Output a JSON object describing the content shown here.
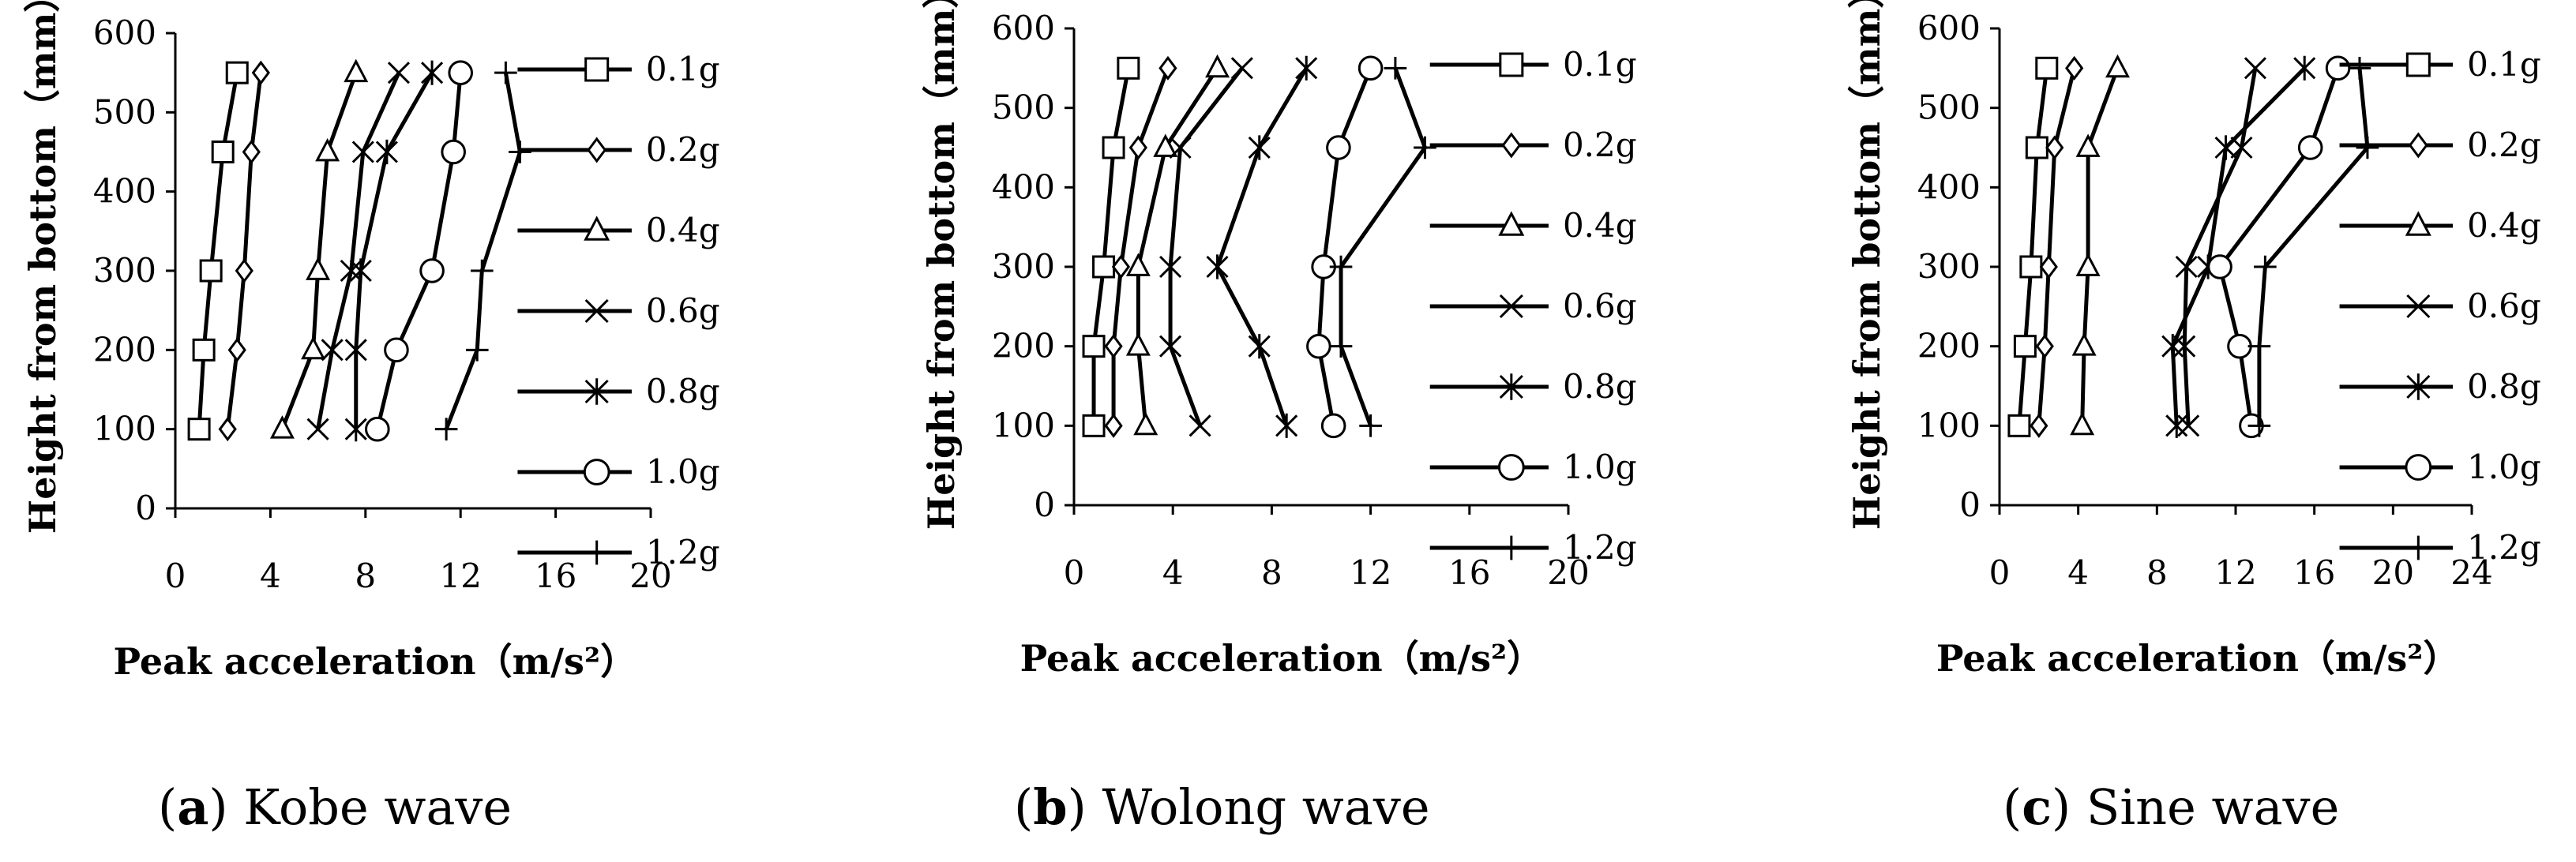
{
  "figure": {
    "panels": [
      {
        "caption_letter": "a",
        "caption_text": " Kobe wave"
      },
      {
        "caption_letter": "b",
        "caption_text": " Wolong wave"
      },
      {
        "caption_letter": "c",
        "caption_text": " Sine wave"
      }
    ]
  },
  "chart_data": [
    {
      "type": "line",
      "xlabel": "Peak acceleration（m/s²）",
      "ylabel": "Height from bottom（mm）",
      "xlim": [
        0,
        20
      ],
      "ylim": [
        0,
        600
      ],
      "xticks": [
        0,
        4,
        8,
        12,
        16,
        20
      ],
      "yticks": [
        0,
        100,
        200,
        300,
        400,
        500,
        600
      ],
      "legend_position": "right",
      "grid": false,
      "y": [
        100,
        200,
        300,
        450,
        550
      ],
      "series": [
        {
          "name": "0.1g",
          "marker": "square",
          "x": [
            1.0,
            1.2,
            1.5,
            2.0,
            2.6
          ]
        },
        {
          "name": "0.2g",
          "marker": "diamond",
          "x": [
            2.2,
            2.6,
            2.9,
            3.2,
            3.6
          ]
        },
        {
          "name": "0.4g",
          "marker": "triangle",
          "x": [
            4.5,
            5.8,
            6.0,
            6.4,
            7.6
          ]
        },
        {
          "name": "0.6g",
          "marker": "x",
          "x": [
            6.0,
            6.6,
            7.4,
            7.9,
            9.4
          ]
        },
        {
          "name": "0.8g",
          "marker": "star",
          "x": [
            7.6,
            7.6,
            7.8,
            8.9,
            10.8
          ]
        },
        {
          "name": "1.0g",
          "marker": "circle",
          "x": [
            8.5,
            9.3,
            10.8,
            11.7,
            12.0
          ]
        },
        {
          "name": "1.2g",
          "marker": "plus",
          "x": [
            11.4,
            12.7,
            12.9,
            14.5,
            13.9
          ]
        }
      ]
    },
    {
      "type": "line",
      "xlabel": "Peak acceleration（m/s²）",
      "ylabel": "Height from bottom（mm）",
      "xlim": [
        0,
        20
      ],
      "ylim": [
        0,
        600
      ],
      "xticks": [
        0,
        4,
        8,
        12,
        16,
        20
      ],
      "yticks": [
        0,
        100,
        200,
        300,
        400,
        500,
        600
      ],
      "legend_position": "right",
      "grid": false,
      "y": [
        100,
        200,
        300,
        450,
        550
      ],
      "series": [
        {
          "name": "0.1g",
          "marker": "square",
          "x": [
            0.8,
            0.8,
            1.2,
            1.6,
            2.2
          ]
        },
        {
          "name": "0.2g",
          "marker": "diamond",
          "x": [
            1.6,
            1.6,
            1.9,
            2.6,
            3.8
          ]
        },
        {
          "name": "0.4g",
          "marker": "triangle",
          "x": [
            2.9,
            2.6,
            2.6,
            3.7,
            5.8
          ]
        },
        {
          "name": "0.6g",
          "marker": "x",
          "x": [
            5.1,
            3.9,
            3.9,
            4.3,
            6.8
          ]
        },
        {
          "name": "0.8g",
          "marker": "star",
          "x": [
            8.6,
            7.5,
            5.8,
            7.5,
            9.4
          ]
        },
        {
          "name": "1.0g",
          "marker": "circle",
          "x": [
            10.5,
            9.9,
            10.1,
            10.7,
            12.0
          ]
        },
        {
          "name": "1.2g",
          "marker": "plus",
          "x": [
            12.0,
            10.8,
            10.8,
            14.2,
            13.0
          ]
        }
      ]
    },
    {
      "type": "line",
      "xlabel": "Peak acceleration（m/s²）",
      "ylabel": "Height from bottom（mm）",
      "xlim": [
        0,
        24
      ],
      "ylim": [
        0,
        600
      ],
      "xticks": [
        0,
        4,
        8,
        12,
        16,
        20,
        24
      ],
      "yticks": [
        0,
        100,
        200,
        300,
        400,
        500,
        600
      ],
      "legend_position": "right",
      "grid": false,
      "y": [
        100,
        200,
        300,
        450,
        550
      ],
      "series": [
        {
          "name": "0.1g",
          "marker": "square",
          "x": [
            1.0,
            1.3,
            1.6,
            1.9,
            2.4
          ]
        },
        {
          "name": "0.2g",
          "marker": "diamond",
          "x": [
            2.0,
            2.3,
            2.5,
            2.8,
            3.8
          ]
        },
        {
          "name": "0.4g",
          "marker": "triangle",
          "x": [
            4.2,
            4.3,
            4.5,
            4.5,
            6.0
          ]
        },
        {
          "name": "0.6g",
          "marker": "x",
          "x": [
            9.6,
            9.4,
            9.5,
            12.3,
            13.0
          ]
        },
        {
          "name": "0.8g",
          "marker": "star",
          "x": [
            9.0,
            8.8,
            10.6,
            11.5,
            15.5
          ]
        },
        {
          "name": "1.0g",
          "marker": "circle",
          "x": [
            12.8,
            12.2,
            11.2,
            15.8,
            17.2
          ]
        },
        {
          "name": "1.2g",
          "marker": "plus",
          "x": [
            13.2,
            13.2,
            13.5,
            18.7,
            18.3
          ]
        }
      ]
    }
  ]
}
